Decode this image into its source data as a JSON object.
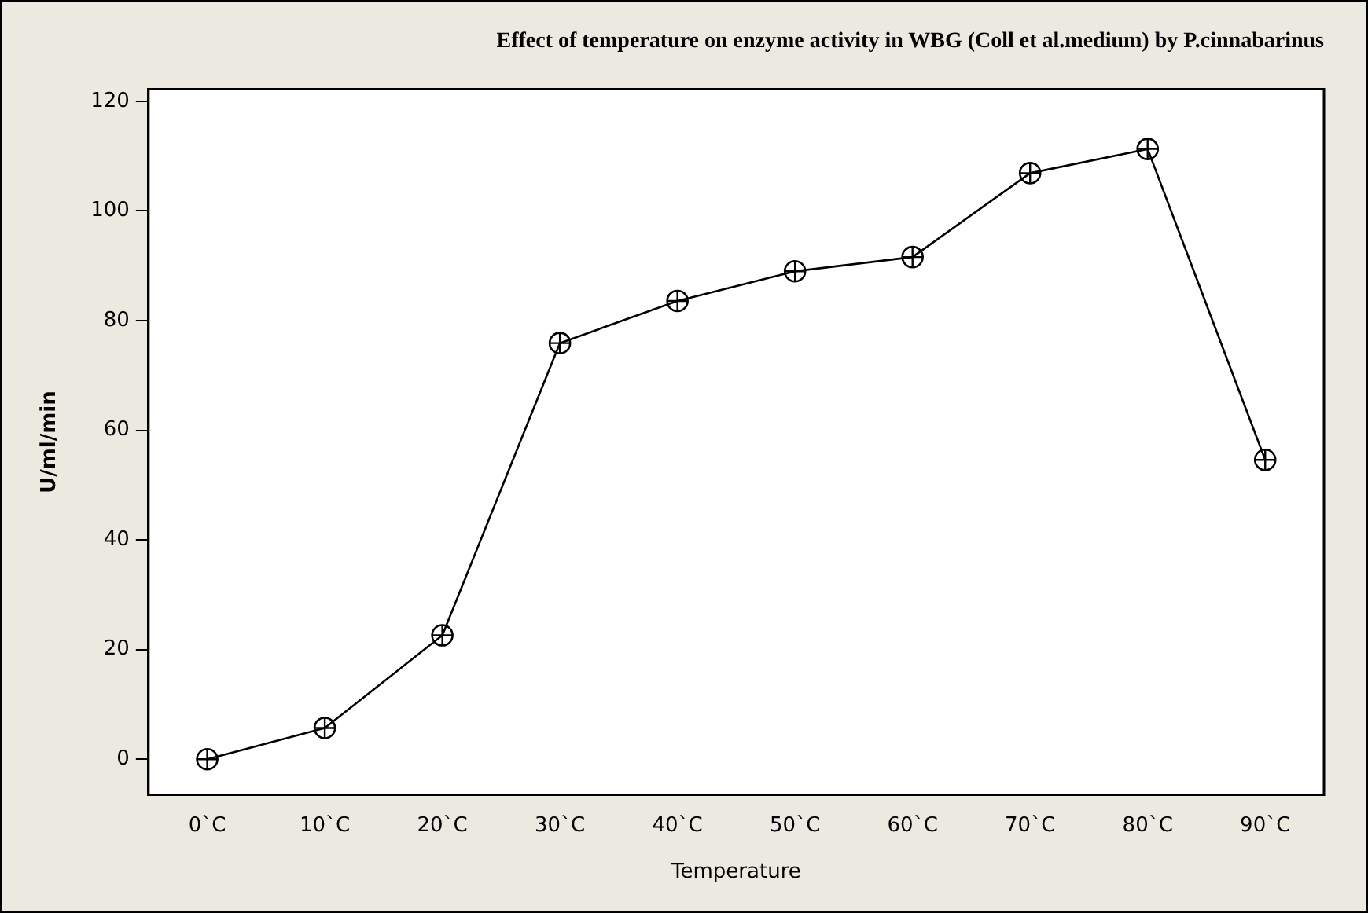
{
  "chart_data": {
    "type": "line",
    "title": "Effect of temperature on enzyme activity in WBG (Coll et al.medium) by P.cinnabarinus",
    "xlabel": "Temperature",
    "ylabel": "U/ml/min",
    "categories": [
      "0`C",
      "10`C",
      "20`C",
      "30`C",
      "40`C",
      "50`C",
      "60`C",
      "70`C",
      "80`C",
      "90`C"
    ],
    "series": [
      {
        "color": "#000000",
        "values": [
          0,
          5.7,
          22.6,
          75.9,
          83.6,
          89.0,
          91.6,
          106.9,
          111.3,
          54.6
        ]
      }
    ],
    "ylim": [
      -6.5,
      122.2
    ],
    "yticks": [
      0,
      20,
      40,
      60,
      80,
      100,
      120
    ],
    "grid": false,
    "legend": false,
    "marker": "circle",
    "line_style": "solid"
  }
}
